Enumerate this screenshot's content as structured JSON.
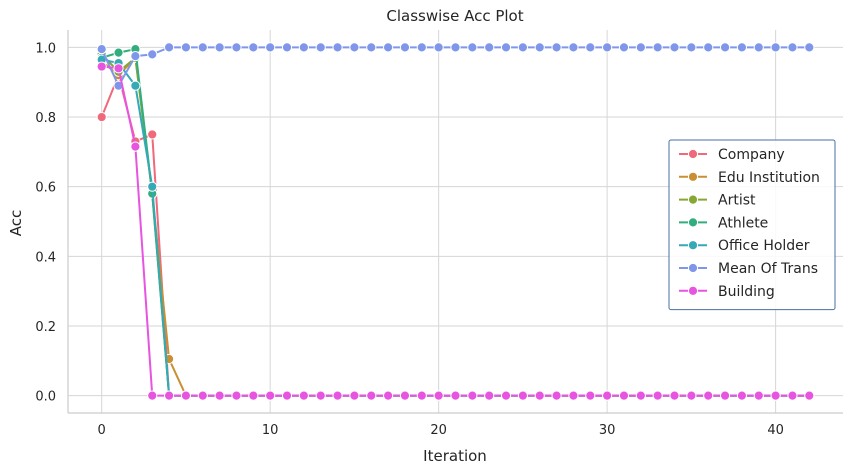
{
  "chart_data": {
    "type": "line",
    "title": "Classwise Acc Plot",
    "xlabel": "Iteration",
    "ylabel": "Acc",
    "xlim": [
      -2,
      44
    ],
    "ylim": [
      -0.05,
      1.05
    ],
    "xticks": [
      0,
      10,
      20,
      30,
      40
    ],
    "xtick_labels": [
      "0",
      "10",
      "20",
      "30",
      "40"
    ],
    "yticks": [
      0.0,
      0.2,
      0.4,
      0.6,
      0.8,
      1.0
    ],
    "ytick_labels": [
      "0.0",
      "0.2",
      "0.4",
      "0.6",
      "0.8",
      "1.0"
    ],
    "grid": true,
    "legend": "center-right",
    "num_points": 43,
    "series": [
      {
        "name": "Company",
        "color": "#f0697a",
        "head": [
          0.8,
          0.92,
          0.73,
          0.75
        ],
        "tail": 0.0
      },
      {
        "name": "Edu Institution",
        "color": "#c98f32",
        "head": [
          0.96,
          0.92,
          0.97,
          0.58,
          0.105
        ],
        "tail": 0.0
      },
      {
        "name": "Artist",
        "color": "#86a733",
        "head": [
          0.98,
          0.93,
          0.97,
          0.58
        ],
        "tail": 0.0
      },
      {
        "name": "Athlete",
        "color": "#32ae7e",
        "head": [
          0.97,
          0.985,
          0.995,
          0.58
        ],
        "tail": 0.0
      },
      {
        "name": "Office Holder",
        "color": "#35a9b5",
        "head": [
          0.965,
          0.955,
          0.89,
          0.6
        ],
        "tail": 0.0
      },
      {
        "name": "Mean Of Trans",
        "color": "#7f96ea",
        "head": [
          0.995,
          0.89,
          0.975,
          0.98
        ],
        "tail": 1.0
      },
      {
        "name": "Building",
        "color": "#e754e0",
        "head": [
          0.945,
          0.94,
          0.715
        ],
        "tail": 0.0
      }
    ]
  }
}
